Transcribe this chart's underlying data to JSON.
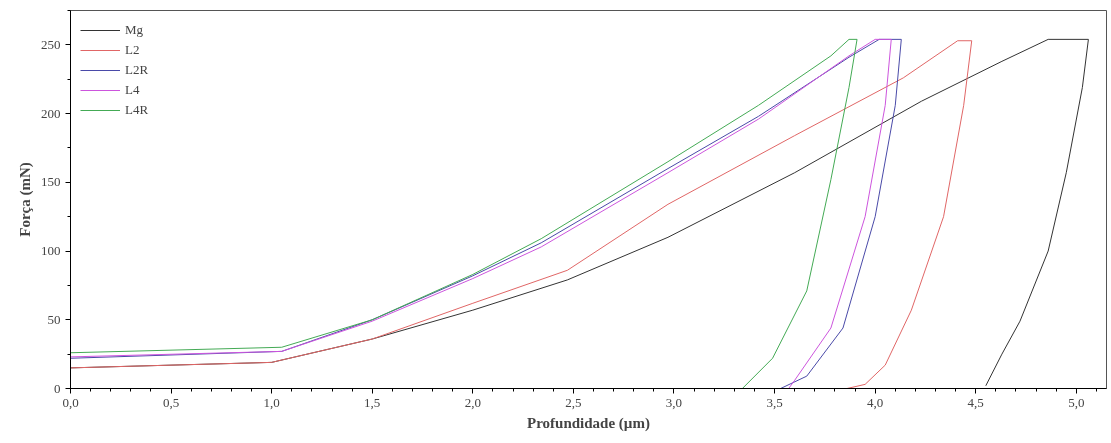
{
  "chart_data": {
    "type": "line",
    "xlabel": "Profundidade (µm)",
    "ylabel": "Força (mN)",
    "xlim": [
      0,
      5.15
    ],
    "ylim": [
      0,
      275
    ],
    "xticks": [
      {
        "value": 0,
        "label": "0,0"
      },
      {
        "value": 0.5,
        "label": "0,5"
      },
      {
        "value": 1,
        "label": "1,0"
      },
      {
        "value": 1.5,
        "label": "1,5"
      },
      {
        "value": 2,
        "label": "2,0"
      },
      {
        "value": 2.5,
        "label": "2,5"
      },
      {
        "value": 3,
        "label": "3,0"
      },
      {
        "value": 3.5,
        "label": "3,5"
      },
      {
        "value": 4,
        "label": "4,0"
      },
      {
        "value": 4.5,
        "label": "4,5"
      },
      {
        "value": 5,
        "label": "5,0"
      }
    ],
    "yticks": [
      0,
      50,
      100,
      150,
      200,
      250
    ],
    "grid": false,
    "legend": "top left",
    "marker": "none",
    "line_style": "solid",
    "series": [
      {
        "name": "Mg",
        "color": "#333333",
        "x": [
          0,
          1.0,
          1.5,
          2.0,
          2.47,
          2.97,
          3.6,
          4.23,
          4.63,
          4.86,
          5.06,
          5.03,
          4.95,
          4.86,
          4.72,
          4.63,
          4.55
        ],
        "values": [
          15,
          19,
          36,
          57,
          79,
          110,
          157,
          209,
          238,
          254,
          254,
          219,
          157,
          100,
          49,
          25,
          2
        ]
      },
      {
        "name": "L2",
        "color": "#e06666",
        "x": [
          0,
          1.0,
          1.5,
          2.0,
          2.47,
          2.97,
          3.6,
          4.14,
          4.41,
          4.48,
          4.44,
          4.34,
          4.18,
          4.05,
          3.95,
          3.86
        ],
        "values": [
          15,
          19,
          36,
          62,
          86,
          134,
          184,
          226,
          253,
          253,
          206,
          125,
          57,
          17,
          3,
          0
        ]
      },
      {
        "name": "L2R",
        "color": "#4a4aa8",
        "x": [
          0,
          1.05,
          1.5,
          2.0,
          2.34,
          2.97,
          3.42,
          3.87,
          4.02,
          4.13,
          4.1,
          4.0,
          3.84,
          3.66,
          3.53
        ],
        "values": [
          22,
          27,
          50,
          82,
          106,
          160,
          198,
          241,
          254,
          254,
          206,
          125,
          44,
          9,
          0
        ]
      },
      {
        "name": "L4",
        "color": "#cc55dd",
        "x": [
          0,
          1.05,
          1.5,
          2.0,
          2.34,
          2.97,
          3.42,
          3.87,
          4.0,
          4.08,
          4.05,
          3.95,
          3.78,
          3.6,
          3.57
        ],
        "values": [
          23,
          27,
          49,
          80,
          103,
          157,
          196,
          242,
          254,
          254,
          206,
          125,
          44,
          6,
          0
        ]
      },
      {
        "name": "L4R",
        "color": "#44aa55",
        "x": [
          0,
          1.05,
          1.5,
          2.0,
          2.34,
          2.97,
          3.42,
          3.78,
          3.87,
          3.91,
          3.87,
          3.78,
          3.66,
          3.49,
          3.34
        ],
        "values": [
          26,
          30,
          50,
          83,
          109,
          165,
          206,
          242,
          254,
          254,
          219,
          152,
          71,
          22,
          0
        ]
      }
    ]
  }
}
